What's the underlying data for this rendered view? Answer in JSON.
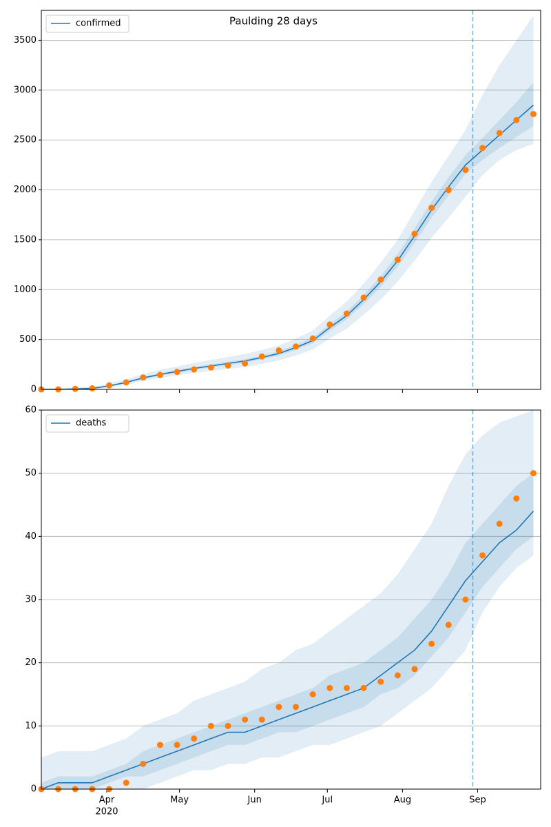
{
  "chart_data": [
    {
      "type": "line",
      "title": "Paulding 28 days",
      "x": [
        "2020-03-05",
        "2020-03-12",
        "2020-03-19",
        "2020-03-26",
        "2020-04-02",
        "2020-04-09",
        "2020-04-16",
        "2020-04-23",
        "2020-04-30",
        "2020-05-07",
        "2020-05-14",
        "2020-05-21",
        "2020-05-28",
        "2020-06-04",
        "2020-06-11",
        "2020-06-18",
        "2020-06-25",
        "2020-07-02",
        "2020-07-09",
        "2020-07-16",
        "2020-07-23",
        "2020-07-30",
        "2020-08-06",
        "2020-08-13",
        "2020-08-20",
        "2020-08-27",
        "2020-09-03",
        "2020-09-10",
        "2020-09-17",
        "2020-09-24"
      ],
      "xlim": [
        "2020-03-05",
        "2020-09-27"
      ],
      "vline": "2020-08-30",
      "series": [
        {
          "name": "confirmed",
          "color": "#1f77b4",
          "values": [
            0,
            0,
            5,
            10,
            35,
            70,
            115,
            150,
            180,
            210,
            235,
            260,
            285,
            320,
            360,
            420,
            490,
            620,
            740,
            900,
            1080,
            1290,
            1540,
            1800,
            2030,
            2250,
            2400,
            2550,
            2700,
            2850
          ]
        }
      ],
      "points": {
        "color": "#ff7f0e",
        "values": [
          0,
          0,
          5,
          10,
          40,
          70,
          120,
          145,
          175,
          200,
          220,
          240,
          260,
          330,
          390,
          430,
          510,
          650,
          760,
          920,
          1100,
          1300,
          1560,
          1820,
          2000,
          2200,
          2420,
          2570,
          2700,
          2760
        ]
      },
      "bands": [
        {
          "lower": [
            0,
            0,
            0,
            0,
            20,
            45,
            85,
            115,
            140,
            165,
            185,
            205,
            225,
            255,
            290,
            340,
            400,
            510,
            610,
            750,
            900,
            1080,
            1290,
            1520,
            1720,
            1930,
            2150,
            2300,
            2400,
            2460
          ],
          "upper": [
            10,
            10,
            15,
            25,
            60,
            100,
            155,
            195,
            230,
            265,
            295,
            325,
            355,
            395,
            440,
            510,
            590,
            740,
            880,
            1060,
            1270,
            1500,
            1790,
            2080,
            2340,
            2600,
            2950,
            3250,
            3500,
            3750
          ]
        },
        {
          "lower": [
            0,
            0,
            2,
            5,
            30,
            62,
            105,
            138,
            167,
            196,
            220,
            244,
            268,
            302,
            340,
            397,
            463,
            588,
            703,
            857,
            1028,
            1230,
            1470,
            1720,
            1945,
            2160,
            2300,
            2420,
            2530,
            2640
          ],
          "upper": [
            2,
            2,
            8,
            15,
            42,
            80,
            126,
            162,
            193,
            225,
            250,
            277,
            303,
            340,
            382,
            445,
            518,
            655,
            780,
            945,
            1135,
            1355,
            1615,
            1885,
            2125,
            2350,
            2520,
            2700,
            2880,
            3080
          ]
        }
      ],
      "ylim": [
        0,
        3800
      ],
      "yticks": [
        0,
        500,
        1000,
        1500,
        2000,
        2500,
        3000,
        3500
      ],
      "grid": true,
      "legend": "upper left"
    },
    {
      "type": "line",
      "x": [
        "2020-03-05",
        "2020-03-12",
        "2020-03-19",
        "2020-03-26",
        "2020-04-02",
        "2020-04-09",
        "2020-04-16",
        "2020-04-23",
        "2020-04-30",
        "2020-05-07",
        "2020-05-14",
        "2020-05-21",
        "2020-05-28",
        "2020-06-04",
        "2020-06-11",
        "2020-06-18",
        "2020-06-25",
        "2020-07-02",
        "2020-07-09",
        "2020-07-16",
        "2020-07-23",
        "2020-07-30",
        "2020-08-06",
        "2020-08-13",
        "2020-08-20",
        "2020-08-27",
        "2020-09-03",
        "2020-09-10",
        "2020-09-17",
        "2020-09-24"
      ],
      "xlim": [
        "2020-03-05",
        "2020-09-27"
      ],
      "vline": "2020-08-30",
      "xticks": [
        {
          "value": "2020-04-01",
          "label": "Apr"
        },
        {
          "value": "2020-05-01",
          "label": "May"
        },
        {
          "value": "2020-06-01",
          "label": "Jun"
        },
        {
          "value": "2020-07-01",
          "label": "Jul"
        },
        {
          "value": "2020-08-01",
          "label": "Aug"
        },
        {
          "value": "2020-09-01",
          "label": "Sep"
        }
      ],
      "year_label": "2020",
      "series": [
        {
          "name": "deaths",
          "color": "#1f77b4",
          "values": [
            0,
            1,
            1,
            1,
            2,
            3,
            4,
            5,
            6,
            7,
            8,
            9,
            9,
            10,
            11,
            12,
            13,
            14,
            15,
            16,
            18,
            20,
            22,
            25,
            29,
            33,
            36,
            39,
            41,
            44
          ]
        }
      ],
      "points": {
        "color": "#ff7f0e",
        "values": [
          0,
          0,
          0,
          0,
          0,
          1,
          4,
          7,
          7,
          8,
          10,
          10,
          11,
          11,
          13,
          13,
          15,
          16,
          16,
          16,
          17,
          18,
          19,
          23,
          26,
          30,
          37,
          42,
          46,
          50
        ]
      },
      "bands": [
        {
          "lower": [
            0,
            0,
            0,
            0,
            0,
            0,
            0,
            1,
            2,
            3,
            3,
            4,
            4,
            5,
            5,
            6,
            7,
            7,
            8,
            9,
            10,
            12,
            14,
            16,
            19,
            22,
            28,
            32,
            35,
            37
          ],
          "upper": [
            5,
            6,
            6,
            6,
            7,
            8,
            10,
            11,
            12,
            14,
            15,
            16,
            17,
            19,
            20,
            22,
            23,
            25,
            27,
            29,
            31,
            34,
            38,
            42,
            48,
            53,
            56,
            58,
            59,
            60
          ]
        },
        {
          "lower": [
            0,
            0,
            0,
            0,
            1,
            2,
            2,
            3,
            4,
            5,
            6,
            7,
            7,
            8,
            9,
            9,
            10,
            11,
            12,
            13,
            15,
            16,
            18,
            21,
            24,
            28,
            32,
            35,
            38,
            40
          ],
          "upper": [
            1,
            2,
            2,
            2,
            3,
            4,
            6,
            7,
            8,
            9,
            10,
            11,
            12,
            13,
            14,
            15,
            16,
            18,
            19,
            20,
            22,
            24,
            27,
            30,
            34,
            39,
            42,
            45,
            48,
            50
          ]
        }
      ],
      "ylim": [
        0,
        60
      ],
      "yticks": [
        0,
        10,
        20,
        30,
        40,
        50,
        60
      ],
      "grid": true,
      "legend": "upper left"
    }
  ]
}
